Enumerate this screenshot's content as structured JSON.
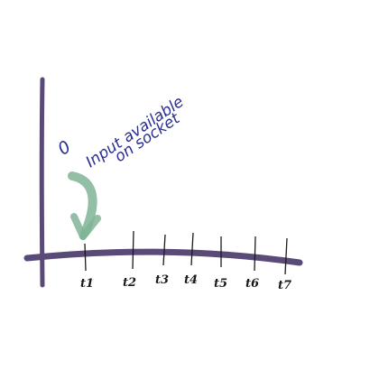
{
  "diagram": {
    "annotation": {
      "marker": "0",
      "line1": "Input available",
      "line2": "on socket"
    },
    "ticks": [
      {
        "label": "t1"
      },
      {
        "label": "t2"
      },
      {
        "label": "t3"
      },
      {
        "label": "t4"
      },
      {
        "label": "t5"
      },
      {
        "label": "t6"
      },
      {
        "label": "t7"
      }
    ],
    "colors": {
      "axis": "#5a4a78",
      "arrow": "#7fb495",
      "annotation_ink": "#2a2f8f",
      "tick_ink": "#1a1a1a"
    }
  }
}
